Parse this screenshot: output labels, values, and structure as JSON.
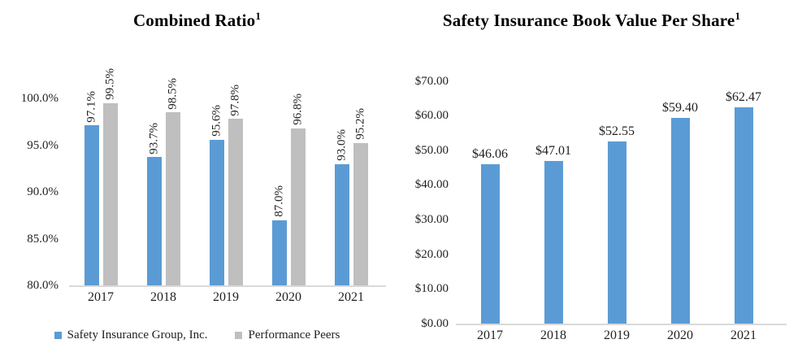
{
  "colors": {
    "primary_blue": "#5B9BD5",
    "peer_gray": "#BFBFBF",
    "axis_line": "#D9D9D9",
    "text": "#1f1f1f"
  },
  "chart_data": [
    {
      "type": "bar",
      "title": "Combined Ratio",
      "title_superscript": "1",
      "categories": [
        "2017",
        "2018",
        "2019",
        "2020",
        "2021"
      ],
      "series": [
        {
          "name": "Safety Insurance Group, Inc.",
          "color": "#5B9BD5",
          "values": [
            97.1,
            93.7,
            95.6,
            87.0,
            93.0
          ],
          "labels": [
            "97.1%",
            "93.7%",
            "95.6%",
            "87.0%",
            "93.0%"
          ]
        },
        {
          "name": "Performance Peers",
          "color": "#BFBFBF",
          "values": [
            99.5,
            98.5,
            97.8,
            96.8,
            95.2
          ],
          "labels": [
            "99.5%",
            "98.5%",
            "97.8%",
            "96.8%",
            "95.2%"
          ]
        }
      ],
      "y_axis": {
        "min": 80,
        "max": 100,
        "tick_step": 5,
        "tick_labels": [
          "80.0%",
          "85.0%",
          "90.0%",
          "95.0%",
          "100.0%"
        ]
      },
      "legend_position": "bottom",
      "grid": false,
      "data_label_rotation": 90
    },
    {
      "type": "bar",
      "title": "Safety Insurance Book Value Per Share",
      "title_superscript": "1",
      "categories": [
        "2017",
        "2018",
        "2019",
        "2020",
        "2021"
      ],
      "series": [
        {
          "name": "Safety Insurance Book Value Per Share",
          "color": "#5B9BD5",
          "values": [
            46.06,
            47.01,
            52.55,
            59.4,
            62.47
          ],
          "labels": [
            "$46.06",
            "$47.01",
            "$52.55",
            "$59.40",
            "$62.47"
          ]
        }
      ],
      "y_axis": {
        "min": 0,
        "max": 70,
        "tick_step": 10,
        "tick_labels": [
          "$0.00",
          "$10.00",
          "$20.00",
          "$30.00",
          "$40.00",
          "$50.00",
          "$60.00",
          "$70.00"
        ]
      },
      "legend_position": "none",
      "grid": false,
      "data_label_rotation": 0
    }
  ]
}
